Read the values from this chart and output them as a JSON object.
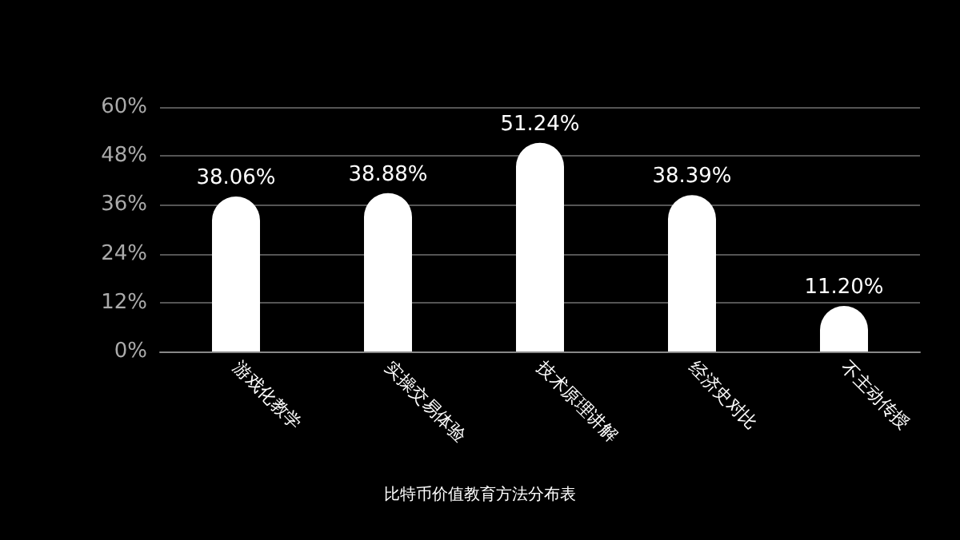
{
  "chart_data": {
    "type": "bar",
    "title": "比特币价值教育方法分布表",
    "categories": [
      "游戏化教学",
      "实操交易体验",
      "技术原理讲解",
      "经济史对比",
      "不主动传授"
    ],
    "values": [
      38.06,
      38.88,
      51.24,
      38.39,
      11.2
    ],
    "value_labels": [
      "38.06%",
      "38.88%",
      "51.24%",
      "38.39%",
      "11.20%"
    ],
    "color": "#ffffff",
    "ylim": [
      0,
      60
    ],
    "yticks": [
      {
        "value": 0,
        "label": "0%"
      },
      {
        "value": 12,
        "label": "12%"
      },
      {
        "value": 24,
        "label": "24%"
      },
      {
        "value": 36,
        "label": "36%"
      },
      {
        "value": 48,
        "label": "48%"
      },
      {
        "value": 60,
        "label": "60%"
      }
    ],
    "grid": "y"
  }
}
